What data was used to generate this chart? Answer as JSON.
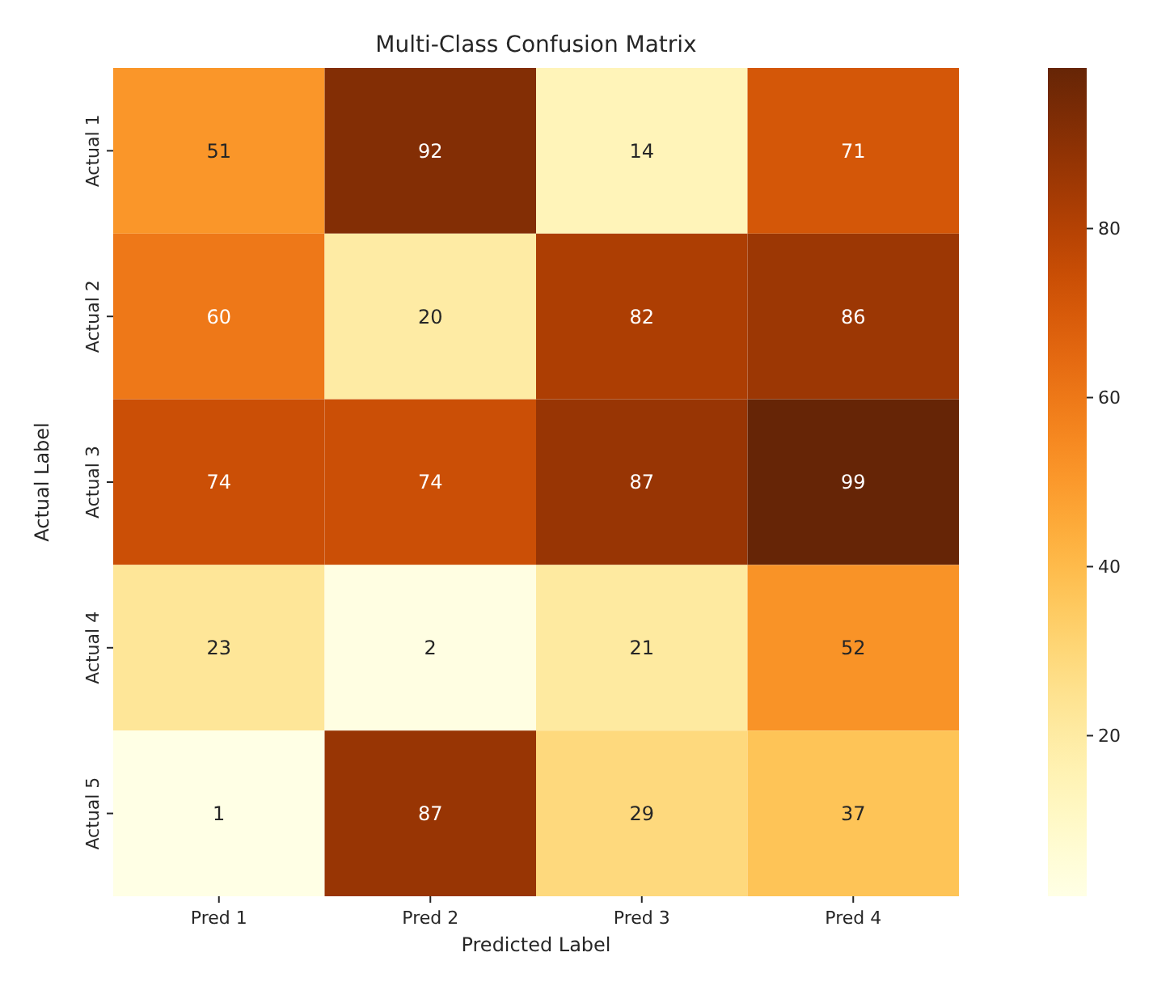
{
  "chart_data": {
    "type": "heatmap",
    "title": "Multi-Class Confusion Matrix",
    "xlabel": "Predicted Label",
    "ylabel": "Actual Label",
    "categories": [
      "Pred 1",
      "Pred 2",
      "Pred 3",
      "Pred 4"
    ],
    "y_categories": [
      "Actual 1",
      "Actual 2",
      "Actual 3",
      "Actual 4",
      "Actual 5"
    ],
    "cells": [
      [
        51,
        92,
        14,
        71
      ],
      [
        60,
        20,
        82,
        86
      ],
      [
        74,
        74,
        87,
        99
      ],
      [
        23,
        2,
        21,
        52
      ],
      [
        1,
        87,
        29,
        37
      ]
    ],
    "data_labels": true,
    "clim": [
      1,
      99
    ],
    "cticks": [
      20,
      40,
      60,
      80
    ]
  }
}
